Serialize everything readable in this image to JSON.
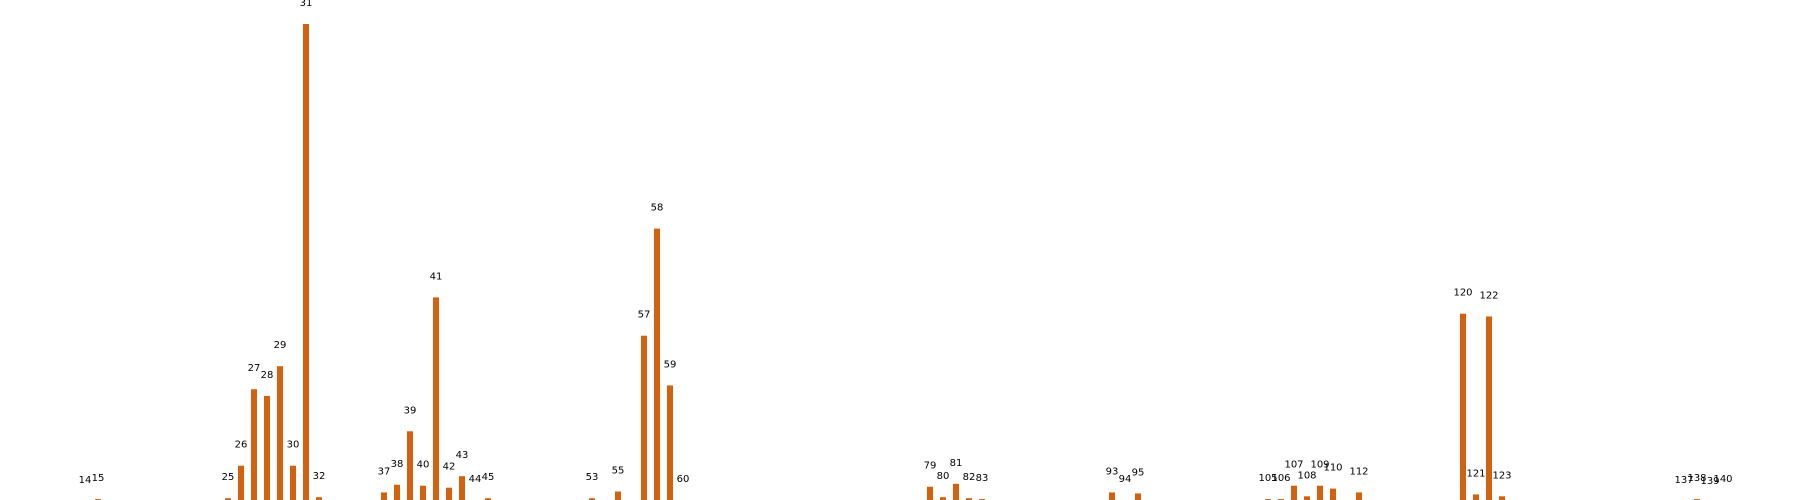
{
  "chart_data": {
    "type": "bar",
    "colors": {
      "bar": "#d2620f"
    },
    "grid": false,
    "axes_visible": false,
    "xlim": [
      0,
      150
    ],
    "ylim": [
      0,
      1040
    ],
    "categories": [
      "14",
      "15",
      "25",
      "26",
      "27",
      "28",
      "29",
      "30",
      "31",
      "32",
      "37",
      "38",
      "39",
      "40",
      "41",
      "42",
      "43",
      "44",
      "45",
      "53",
      "55",
      "57",
      "58",
      "59",
      "60",
      "79",
      "80",
      "81",
      "82",
      "83",
      "93",
      "94",
      "95",
      "105",
      "106",
      "107",
      "108",
      "109",
      "110",
      "112",
      "120",
      "121",
      "122",
      "123",
      "137",
      "138",
      "139",
      "140"
    ],
    "values": [
      2,
      6,
      8,
      76,
      236,
      222,
      284,
      76,
      1000,
      10,
      20,
      36,
      148,
      34,
      428,
      30,
      54,
      4,
      8,
      8,
      22,
      348,
      572,
      244,
      4,
      32,
      10,
      38,
      8,
      6,
      20,
      4,
      18,
      6,
      6,
      34,
      12,
      34,
      28,
      20,
      394,
      16,
      388,
      12,
      2,
      6,
      0,
      4
    ]
  }
}
